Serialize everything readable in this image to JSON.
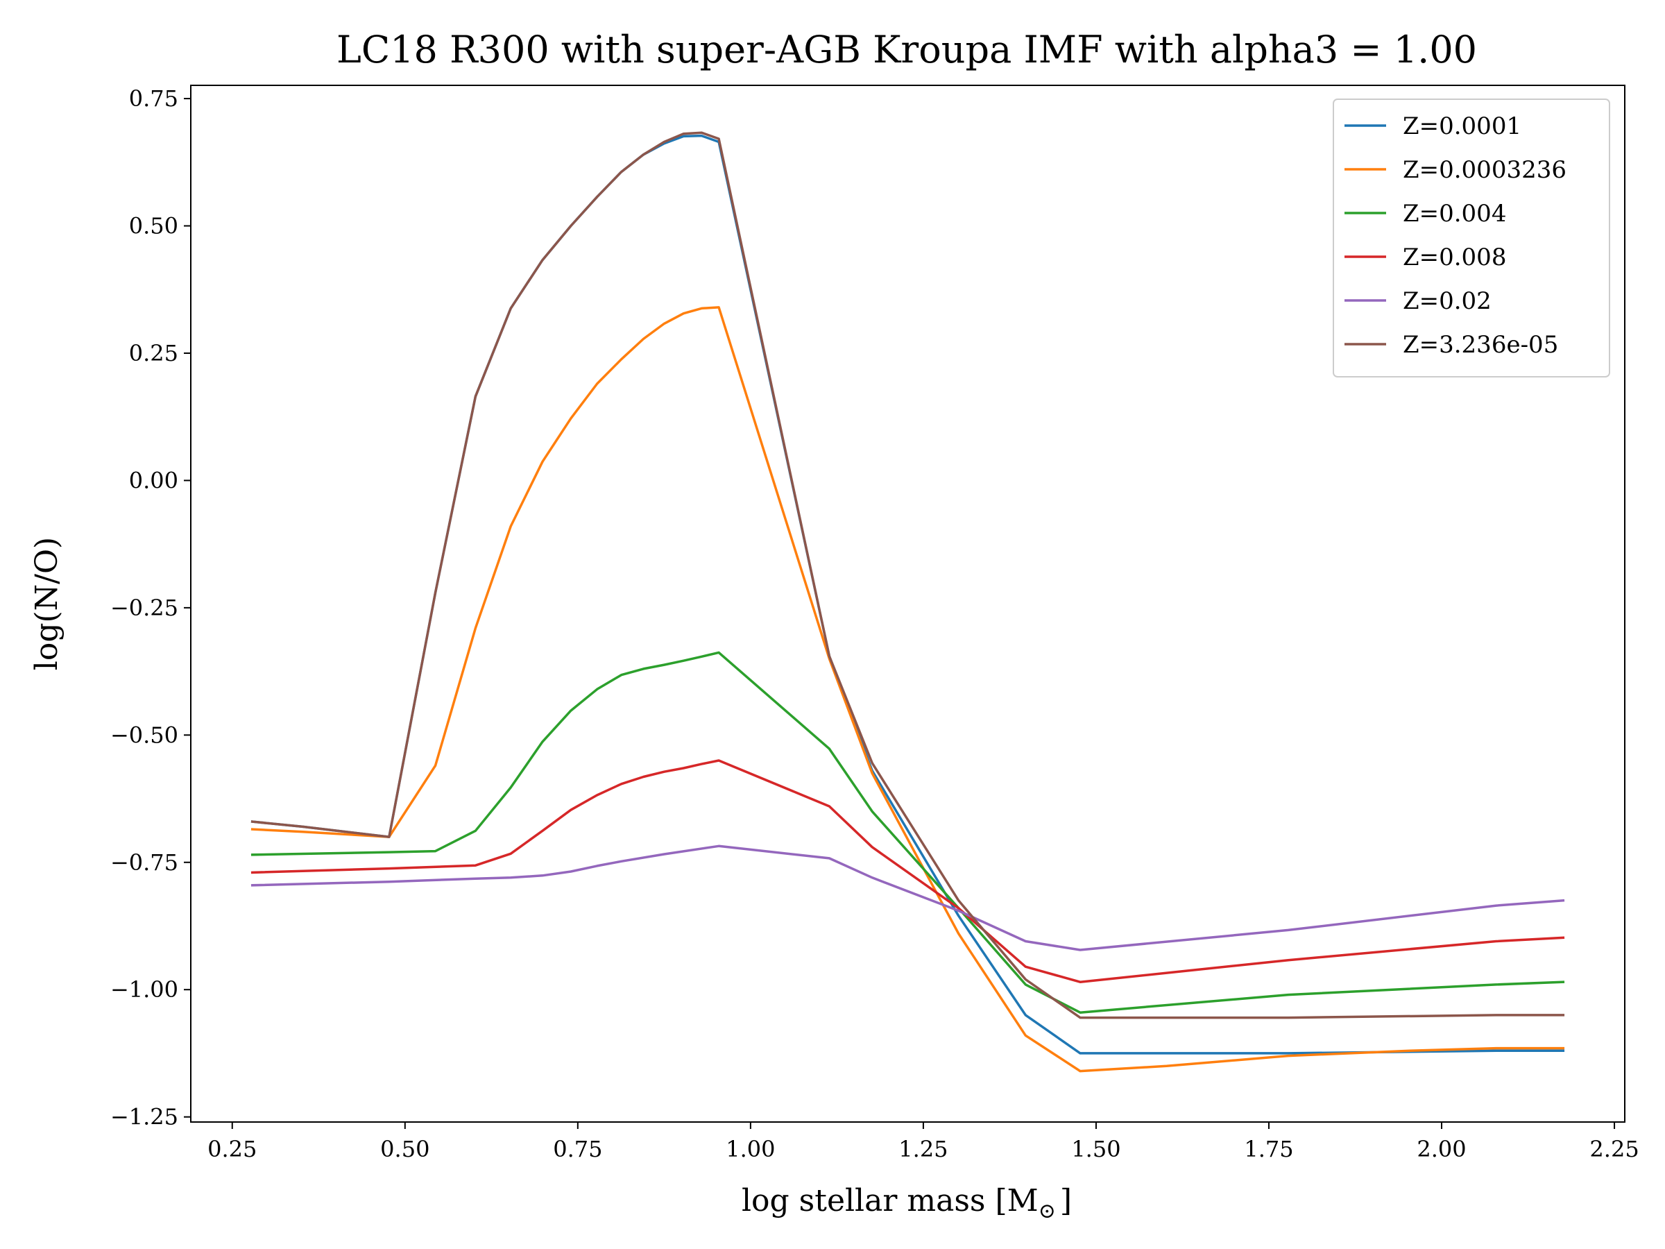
{
  "chart_data": {
    "type": "line",
    "title": "LC18 R300 with super-AGB Kroupa IMF with alpha3 = 1.00",
    "xlabel": "log stellar mass [M",
    "xlabel_subscript": "⊙",
    "xlabel_suffix": "]",
    "ylabel": "log(N/O)",
    "xlim": [
      0.19,
      2.265
    ],
    "ylim": [
      -1.26,
      0.776
    ],
    "xticks": [
      0.25,
      0.5,
      0.75,
      1.0,
      1.25,
      1.5,
      1.75,
      2.0,
      2.25
    ],
    "xtick_labels": [
      "0.25",
      "0.50",
      "0.75",
      "1.00",
      "1.25",
      "1.50",
      "1.75",
      "2.00",
      "2.25"
    ],
    "yticks": [
      0.75,
      0.5,
      0.25,
      0.0,
      -0.25,
      -0.5,
      -0.75,
      -1.0,
      -1.25
    ],
    "ytick_labels": [
      "0.75",
      "0.50",
      "0.25",
      "0.00",
      "−0.25",
      "−0.50",
      "−0.75",
      "−1.00",
      "−1.25"
    ],
    "grid": false,
    "legend_position": "top-right",
    "series": [
      {
        "name": "Z=0.0001",
        "color": "#1f77b4",
        "x": [
          0.279,
          0.352,
          0.477,
          0.544,
          0.602,
          0.653,
          0.699,
          0.74,
          0.778,
          0.813,
          0.845,
          0.875,
          0.903,
          0.929,
          0.954,
          1.114,
          1.176,
          1.301,
          1.398,
          1.477,
          1.778,
          2.079,
          2.176
        ],
        "y": [
          -0.67,
          -0.68,
          -0.7,
          -0.22,
          0.165,
          0.338,
          0.433,
          0.5,
          0.557,
          0.606,
          0.64,
          0.662,
          0.676,
          0.677,
          0.665,
          -0.345,
          -0.57,
          -0.855,
          -1.05,
          -1.125,
          -1.125,
          -1.12,
          -1.12
        ]
      },
      {
        "name": "Z=0.0003236",
        "color": "#ff7f0e",
        "x": [
          0.279,
          0.352,
          0.477,
          0.544,
          0.602,
          0.653,
          0.699,
          0.74,
          0.778,
          0.813,
          0.845,
          0.875,
          0.903,
          0.929,
          0.954,
          1.114,
          1.176,
          1.301,
          1.398,
          1.477,
          1.602,
          1.778,
          1.954,
          2.079,
          2.176
        ],
        "y": [
          -0.685,
          -0.69,
          -0.7,
          -0.56,
          -0.29,
          -0.09,
          0.037,
          0.122,
          0.19,
          0.238,
          0.278,
          0.308,
          0.328,
          0.338,
          0.34,
          -0.35,
          -0.575,
          -0.89,
          -1.09,
          -1.16,
          -1.15,
          -1.13,
          -1.12,
          -1.115,
          -1.115
        ]
      },
      {
        "name": "Z=0.004",
        "color": "#2ca02c",
        "x": [
          0.279,
          0.477,
          0.544,
          0.602,
          0.653,
          0.699,
          0.74,
          0.778,
          0.813,
          0.845,
          0.875,
          0.903,
          0.929,
          0.954,
          1.114,
          1.176,
          1.301,
          1.398,
          1.477,
          1.778,
          2.079,
          2.176
        ],
        "y": [
          -0.735,
          -0.73,
          -0.728,
          -0.688,
          -0.603,
          -0.513,
          -0.452,
          -0.41,
          -0.382,
          -0.37,
          -0.362,
          -0.354,
          -0.346,
          -0.338,
          -0.527,
          -0.65,
          -0.84,
          -0.99,
          -1.045,
          -1.01,
          -0.99,
          -0.985
        ]
      },
      {
        "name": "Z=0.008",
        "color": "#d62728",
        "x": [
          0.279,
          0.477,
          0.602,
          0.653,
          0.699,
          0.74,
          0.778,
          0.813,
          0.845,
          0.875,
          0.903,
          0.929,
          0.954,
          1.114,
          1.176,
          1.301,
          1.398,
          1.477,
          1.778,
          2.079,
          2.176
        ],
        "y": [
          -0.77,
          -0.762,
          -0.756,
          -0.733,
          -0.688,
          -0.647,
          -0.618,
          -0.596,
          -0.582,
          -0.572,
          -0.565,
          -0.557,
          -0.55,
          -0.64,
          -0.72,
          -0.84,
          -0.955,
          -0.985,
          -0.942,
          -0.905,
          -0.898
        ]
      },
      {
        "name": "Z=0.02",
        "color": "#9467bd",
        "x": [
          0.279,
          0.477,
          0.602,
          0.653,
          0.699,
          0.74,
          0.778,
          0.813,
          0.875,
          0.954,
          1.114,
          1.176,
          1.301,
          1.398,
          1.477,
          1.778,
          2.079,
          2.176
        ],
        "y": [
          -0.795,
          -0.788,
          -0.782,
          -0.78,
          -0.776,
          -0.768,
          -0.757,
          -0.748,
          -0.734,
          -0.718,
          -0.742,
          -0.78,
          -0.845,
          -0.905,
          -0.922,
          -0.883,
          -0.835,
          -0.825
        ]
      },
      {
        "name": "Z=3.236e-05",
        "color": "#8c564b",
        "x": [
          0.279,
          0.352,
          0.477,
          0.544,
          0.602,
          0.653,
          0.699,
          0.74,
          0.778,
          0.813,
          0.845,
          0.875,
          0.903,
          0.929,
          0.954,
          1.114,
          1.176,
          1.301,
          1.398,
          1.477,
          1.778,
          2.079,
          2.176
        ],
        "y": [
          -0.67,
          -0.68,
          -0.7,
          -0.22,
          0.165,
          0.338,
          0.433,
          0.5,
          0.557,
          0.606,
          0.64,
          0.665,
          0.681,
          0.683,
          0.671,
          -0.345,
          -0.555,
          -0.825,
          -0.98,
          -1.055,
          -1.055,
          -1.05,
          -1.05
        ]
      }
    ]
  }
}
